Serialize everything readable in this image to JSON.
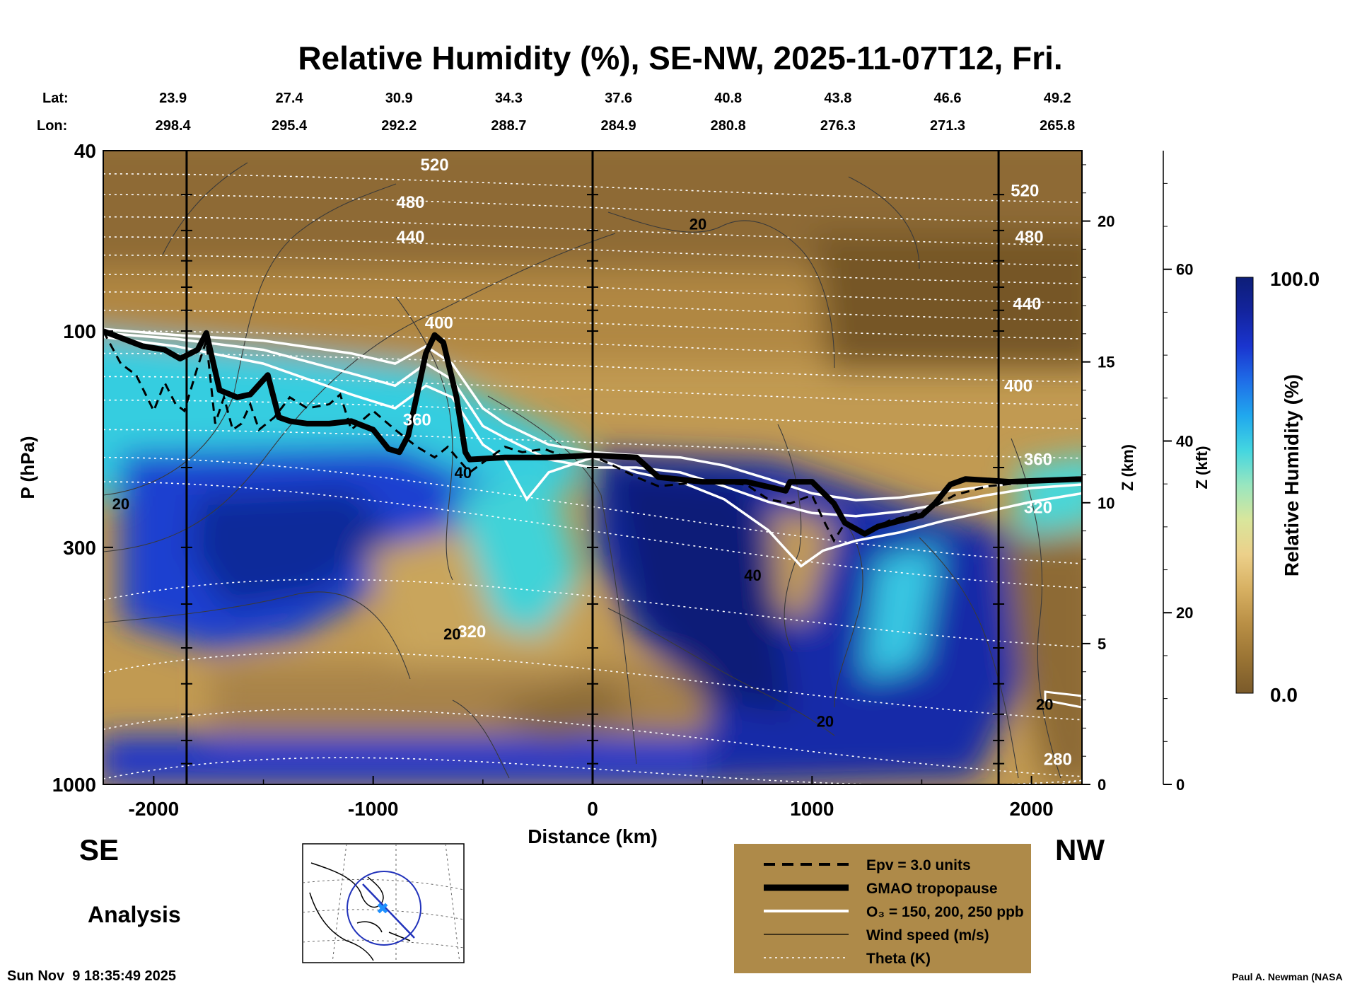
{
  "chart_data": {
    "type": "heatmap",
    "title": "Relative Humidity (%), SE-NW, 2025-11-07T12, Fri.",
    "xlabel": "Distance (km)",
    "ylabel": "P (hPa)",
    "y2label": "Z (km)",
    "y3label": "Z (kft)",
    "xlim": [
      -2230,
      2230
    ],
    "ylim": [
      1000,
      40
    ],
    "yscale": "log",
    "x_ticks": [
      -2000,
      -1000,
      0,
      1000,
      2000
    ],
    "x_tick_labels": [
      "-2000",
      "-1000",
      "0",
      "1000",
      "2000"
    ],
    "y_ticks": [
      1000,
      300,
      100,
      40
    ],
    "y_tick_labels": [
      "1000",
      "300",
      "100",
      "40"
    ],
    "z_km_ticks": [
      0,
      5,
      10,
      15,
      20
    ],
    "z_km_tick_labels": [
      "0",
      "5",
      "10",
      "15",
      "20"
    ],
    "z_kft_ticks": [
      0,
      20,
      40,
      60
    ],
    "z_kft_tick_labels": [
      "0",
      "20",
      "40",
      "60"
    ],
    "lat_label": "Lat:",
    "lon_label": "Lon:",
    "location_x": [
      -1880,
      -1350,
      -850,
      -350,
      150,
      650,
      1150,
      1650,
      2150
    ],
    "lat_values": [
      "23.9",
      "27.4",
      "30.9",
      "34.3",
      "37.6",
      "40.8",
      "43.8",
      "46.6",
      "49.2"
    ],
    "lon_values": [
      "298.4",
      "295.4",
      "292.2",
      "288.7",
      "284.9",
      "280.8",
      "276.3",
      "271.3",
      "265.8"
    ],
    "vertical_lines_km": [
      -1850,
      0,
      1850
    ],
    "colorbar": {
      "label": "Relative Humidity (%)",
      "min_label": "0.0",
      "max_label": "100.0",
      "range": [
        0,
        100
      ],
      "colors": [
        "#7a5a2a",
        "#9a7434",
        "#b98f45",
        "#d7b062",
        "#ecd08a",
        "#d9e69c",
        "#99e6bf",
        "#44d6e0",
        "#20a8ee",
        "#1f6ee8",
        "#1a35cf",
        "#13249e",
        "#0d1e78"
      ]
    },
    "tropopause_hpa": {
      "x": [
        -2230,
        -2050,
        -1950,
        -1880,
        -1800,
        -1760,
        -1700,
        -1620,
        -1560,
        -1480,
        -1430,
        -1380,
        -1300,
        -1200,
        -1100,
        -1000,
        -930,
        -880,
        -840,
        -760,
        -720,
        -680,
        -620,
        -580,
        -560,
        -400,
        -200,
        0,
        200,
        300,
        500,
        700,
        880,
        900,
        1000,
        1100,
        1150,
        1240,
        1300,
        1400,
        1500,
        1560,
        1630,
        1700,
        1900,
        2230
      ],
      "y": [
        100,
        108,
        110,
        115,
        110,
        101,
        135,
        140,
        138,
        125,
        155,
        158,
        160,
        160,
        158,
        165,
        182,
        185,
        170,
        112,
        102,
        106,
        140,
        185,
        192,
        190,
        190,
        188,
        190,
        210,
        215,
        215,
        225,
        215,
        215,
        240,
        265,
        280,
        270,
        262,
        255,
        240,
        218,
        212,
        215,
        212
      ]
    },
    "epv_hpa": {
      "x": [
        -2230,
        -2150,
        -2080,
        -2000,
        -1950,
        -1900,
        -1860,
        -1800,
        -1760,
        -1720,
        -1680,
        -1640,
        -1600,
        -1560,
        -1520,
        -1450,
        -1380,
        -1300,
        -1200,
        -1150,
        -1100,
        -1000,
        -900,
        -800,
        -720,
        -660,
        -620,
        -560,
        -500,
        -400,
        -320,
        -220,
        -120,
        0,
        200,
        300,
        500,
        700,
        800,
        900,
        1000,
        1050,
        1100,
        1150,
        1250,
        1350,
        1450,
        1550,
        1650,
        1800,
        2000,
        2230
      ],
      "y": [
        100,
        118,
        125,
        150,
        130,
        145,
        150,
        120,
        105,
        160,
        140,
        165,
        160,
        145,
        165,
        155,
        140,
        148,
        145,
        138,
        165,
        150,
        165,
        180,
        190,
        180,
        190,
        205,
        195,
        180,
        185,
        182,
        190,
        188,
        210,
        220,
        215,
        218,
        235,
        240,
        230,
        260,
        290,
        265,
        280,
        262,
        255,
        245,
        230,
        220,
        215,
        212
      ]
    },
    "ozone_contours_hpa": [
      {
        "name": "150",
        "x": [
          -2230,
          -1900,
          -1500,
          -1100,
          -900,
          -760,
          -640,
          -500,
          -400,
          -200,
          0,
          200,
          400,
          600,
          800,
          1000,
          1200,
          1400,
          1600,
          1800,
          2000,
          2230
        ],
        "y": [
          99,
          102,
          105,
          112,
          118,
          108,
          118,
          148,
          160,
          178,
          185,
          188,
          190,
          198,
          212,
          228,
          236,
          233,
          226,
          220,
          215,
          210
        ]
      },
      {
        "name": "200",
        "x": [
          -2230,
          -1900,
          -1500,
          -1100,
          -900,
          -760,
          -640,
          -500,
          -400,
          -200,
          0,
          200,
          400,
          600,
          800,
          1000,
          1200,
          1400,
          1600,
          1800,
          2000,
          2230
        ],
        "y": [
          101,
          104,
          110,
          124,
          132,
          118,
          128,
          162,
          172,
          192,
          200,
          200,
          205,
          220,
          238,
          252,
          256,
          250,
          240,
          230,
          222,
          218
        ]
      },
      {
        "name": "250",
        "x": [
          -2230,
          -1900,
          -1500,
          -1100,
          -900,
          -760,
          -640,
          -500,
          -400,
          -300,
          -200,
          0,
          200,
          400,
          600,
          800,
          950,
          1050,
          1200,
          1400,
          1600,
          1800,
          2000,
          2230
        ],
        "y": [
          103,
          108,
          118,
          138,
          148,
          132,
          140,
          178,
          192,
          235,
          205,
          190,
          205,
          215,
          235,
          275,
          330,
          305,
          290,
          278,
          262,
          250,
          238,
          228
        ]
      }
    ],
    "theta_labels": [
      {
        "text": "520",
        "x": -720,
        "y": 43
      },
      {
        "text": "480",
        "x": -830,
        "y": 52
      },
      {
        "text": "440",
        "x": -830,
        "y": 62
      },
      {
        "text": "400",
        "x": -700,
        "y": 96
      },
      {
        "text": "360",
        "x": -800,
        "y": 157
      },
      {
        "text": "320",
        "x": -550,
        "y": 460
      },
      {
        "text": "520",
        "x": 1970,
        "y": 49
      },
      {
        "text": "480",
        "x": 1990,
        "y": 62
      },
      {
        "text": "440",
        "x": 1980,
        "y": 87
      },
      {
        "text": "400",
        "x": 1940,
        "y": 132
      },
      {
        "text": "360",
        "x": 2030,
        "y": 192
      },
      {
        "text": "320",
        "x": 2030,
        "y": 245
      },
      {
        "text": "280",
        "x": 2120,
        "y": 880
      }
    ],
    "wind_labels": [
      {
        "text": "20",
        "x": 480,
        "y": 58
      },
      {
        "text": "20",
        "x": -2150,
        "y": 240
      },
      {
        "text": "40",
        "x": -590,
        "y": 205
      },
      {
        "text": "40",
        "x": 730,
        "y": 345
      },
      {
        "text": "20",
        "x": -640,
        "y": 465
      },
      {
        "text": "20",
        "x": 1060,
        "y": 725
      },
      {
        "text": "20",
        "x": 2060,
        "y": 665
      }
    ]
  },
  "labels": {
    "left_direction": "SE",
    "right_direction": "NW",
    "analysis": "Analysis",
    "timestamp": "Sun Nov  9 18:35:49 2025",
    "credit": "Paul A. Newman (NASA"
  },
  "legend": {
    "items": [
      {
        "style": "dashed",
        "label": "Epv = 3.0 units"
      },
      {
        "style": "thick",
        "label": "GMAO tropopause"
      },
      {
        "style": "white",
        "label": "O₃ = 150, 200, 250 ppb"
      },
      {
        "style": "thin",
        "label": "Wind speed (m/s)"
      },
      {
        "style": "dotted",
        "label": "Theta (K)"
      }
    ]
  }
}
